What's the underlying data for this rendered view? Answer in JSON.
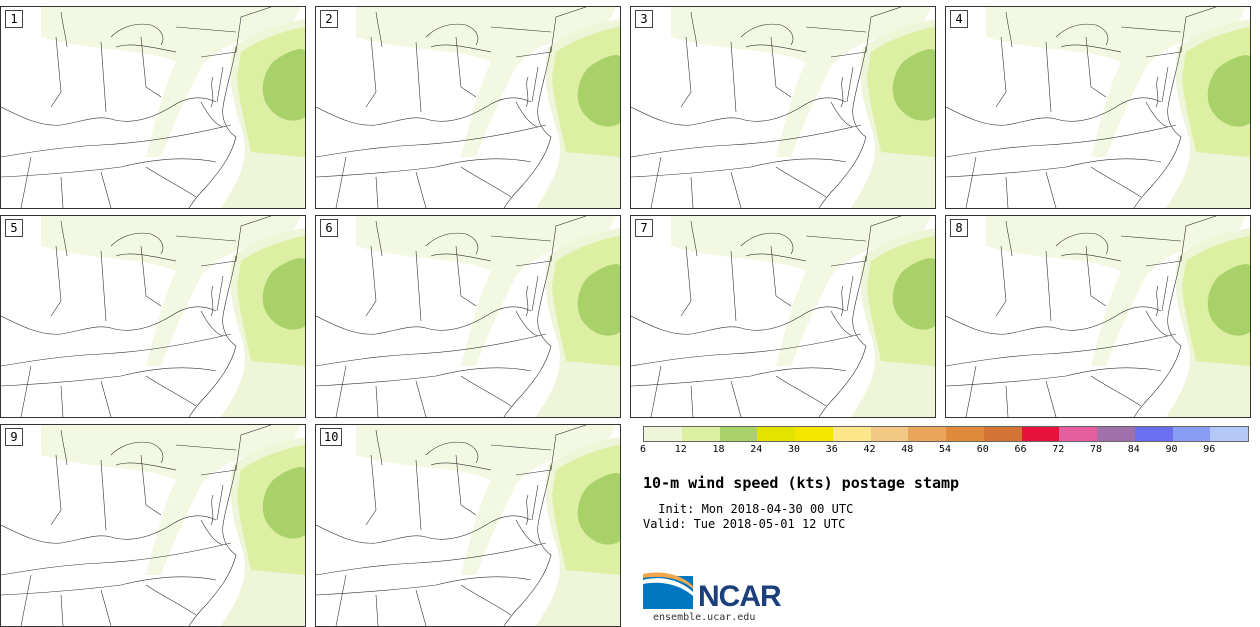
{
  "panels": [
    {
      "label": "1"
    },
    {
      "label": "2"
    },
    {
      "label": "3"
    },
    {
      "label": "4"
    },
    {
      "label": "5"
    },
    {
      "label": "6"
    },
    {
      "label": "7"
    },
    {
      "label": "8"
    },
    {
      "label": "9"
    },
    {
      "label": "10"
    }
  ],
  "colorbar": {
    "colors": [
      "#eef5d8",
      "#dcefa2",
      "#a9d16a",
      "#e2e400",
      "#f5e600",
      "#fbe68a",
      "#f2c884",
      "#eba55a",
      "#e08a3c",
      "#d27436",
      "#e8113c",
      "#e55fa0",
      "#a070a8",
      "#6a6ef0",
      "#8a9df5",
      "#b4c8f7"
    ],
    "ticks": [
      "6",
      "12",
      "18",
      "24",
      "30",
      "36",
      "42",
      "48",
      "54",
      "60",
      "66",
      "72",
      "78",
      "84",
      "90",
      "96"
    ]
  },
  "title": "10-m wind speed (kts) postage stamp",
  "init": " Init: Mon 2018-04-30 00 UTC",
  "valid": "Valid: Tue 2018-05-01 12 UTC",
  "logo": {
    "text": "NCAR",
    "site": "ensemble.ucar.edu",
    "primary_color": "#1b3f7a",
    "accent_color": "#0077c0"
  }
}
